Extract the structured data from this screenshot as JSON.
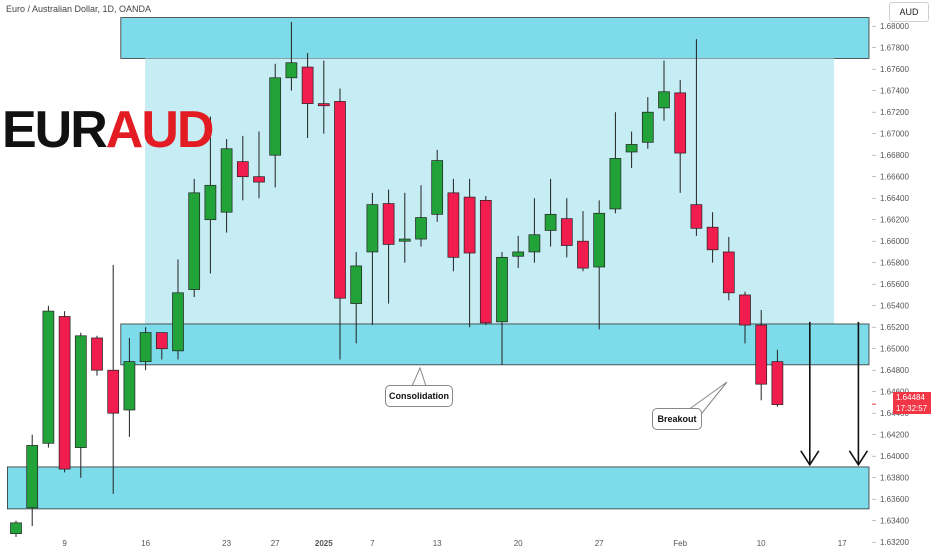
{
  "header": {
    "symbol_title": "Euro / Australian Dollar, 1D, OANDA",
    "currency_button": "AUD"
  },
  "branding": {
    "part1": "EUR",
    "part2": "AUD"
  },
  "annotations": {
    "consolidation": "Consolidation",
    "breakout": "Breakout"
  },
  "last_price": {
    "price": "1.64484",
    "countdown": "17:32:57"
  },
  "colors": {
    "up": "#22a339",
    "down": "#f01d4e",
    "zone": "#7edbe9",
    "range_fill": "#c6ecf4",
    "last_price": "#f23645",
    "brand_accent": "#e31b23"
  },
  "chart_data": {
    "type": "candlestick",
    "title": "Euro / Australian Dollar, 1D, OANDA",
    "ylim": [
      1.6322,
      1.6815
    ],
    "y_ticks": [
      "1.68000",
      "1.67800",
      "1.67600",
      "1.67400",
      "1.67200",
      "1.67000",
      "1.66800",
      "1.66600",
      "1.66400",
      "1.66200",
      "1.66000",
      "1.65800",
      "1.65600",
      "1.65400",
      "1.65200",
      "1.65000",
      "1.64800",
      "1.64600",
      "1.64400",
      "1.64200",
      "1.64000",
      "1.63800",
      "1.63600",
      "1.63400",
      "1.63200"
    ],
    "x_ticks": [
      {
        "label": "9",
        "index": 3
      },
      {
        "label": "16",
        "index": 8
      },
      {
        "label": "23",
        "index": 13
      },
      {
        "label": "27",
        "index": 16
      },
      {
        "label": "2025",
        "index": 19,
        "bold": true
      },
      {
        "label": "7",
        "index": 22
      },
      {
        "label": "13",
        "index": 26
      },
      {
        "label": "20",
        "index": 31
      },
      {
        "label": "27",
        "index": 36
      },
      {
        "label": "Feb",
        "index": 41
      },
      {
        "label": "10",
        "index": 46
      },
      {
        "label": "17",
        "index": 51
      }
    ],
    "candles": [
      {
        "o": 1.6328,
        "h": 1.634,
        "l": 1.6325,
        "c": 1.6338
      },
      {
        "o": 1.6352,
        "h": 1.642,
        "l": 1.6335,
        "c": 1.641
      },
      {
        "o": 1.6412,
        "h": 1.654,
        "l": 1.6408,
        "c": 1.6535
      },
      {
        "o": 1.653,
        "h": 1.6535,
        "l": 1.6385,
        "c": 1.6388
      },
      {
        "o": 1.6408,
        "h": 1.6515,
        "l": 1.638,
        "c": 1.6512
      },
      {
        "o": 1.651,
        "h": 1.6512,
        "l": 1.6475,
        "c": 1.648
      },
      {
        "o": 1.648,
        "h": 1.6578,
        "l": 1.6365,
        "c": 1.644
      },
      {
        "o": 1.6443,
        "h": 1.651,
        "l": 1.6418,
        "c": 1.6488
      },
      {
        "o": 1.6488,
        "h": 1.652,
        "l": 1.648,
        "c": 1.6515
      },
      {
        "o": 1.6515,
        "h": 1.6515,
        "l": 1.649,
        "c": 1.65
      },
      {
        "o": 1.6498,
        "h": 1.6583,
        "l": 1.649,
        "c": 1.6552
      },
      {
        "o": 1.6555,
        "h": 1.6658,
        "l": 1.6548,
        "c": 1.6645
      },
      {
        "o": 1.662,
        "h": 1.6716,
        "l": 1.657,
        "c": 1.6652
      },
      {
        "o": 1.6627,
        "h": 1.6695,
        "l": 1.6608,
        "c": 1.6686
      },
      {
        "o": 1.6674,
        "h": 1.6698,
        "l": 1.6638,
        "c": 1.666
      },
      {
        "o": 1.666,
        "h": 1.6702,
        "l": 1.664,
        "c": 1.6655
      },
      {
        "o": 1.668,
        "h": 1.6765,
        "l": 1.665,
        "c": 1.6752
      },
      {
        "o": 1.6752,
        "h": 1.6804,
        "l": 1.674,
        "c": 1.6766
      },
      {
        "o": 1.6762,
        "h": 1.6775,
        "l": 1.6696,
        "c": 1.6728
      },
      {
        "o": 1.6728,
        "h": 1.6768,
        "l": 1.67,
        "c": 1.6726
      },
      {
        "o": 1.673,
        "h": 1.6742,
        "l": 1.649,
        "c": 1.6547
      },
      {
        "o": 1.6542,
        "h": 1.659,
        "l": 1.6505,
        "c": 1.6577
      },
      {
        "o": 1.659,
        "h": 1.6645,
        "l": 1.6522,
        "c": 1.6634
      },
      {
        "o": 1.6635,
        "h": 1.6648,
        "l": 1.6542,
        "c": 1.6597
      },
      {
        "o": 1.66,
        "h": 1.6645,
        "l": 1.658,
        "c": 1.6602
      },
      {
        "o": 1.6602,
        "h": 1.6652,
        "l": 1.6595,
        "c": 1.6622
      },
      {
        "o": 1.6625,
        "h": 1.6685,
        "l": 1.6618,
        "c": 1.6675
      },
      {
        "o": 1.6645,
        "h": 1.6658,
        "l": 1.6572,
        "c": 1.6585
      },
      {
        "o": 1.6641,
        "h": 1.6658,
        "l": 1.652,
        "c": 1.6589
      },
      {
        "o": 1.6638,
        "h": 1.6642,
        "l": 1.6522,
        "c": 1.6524
      },
      {
        "o": 1.6525,
        "h": 1.659,
        "l": 1.6485,
        "c": 1.6585
      },
      {
        "o": 1.6586,
        "h": 1.6605,
        "l": 1.6575,
        "c": 1.659
      },
      {
        "o": 1.659,
        "h": 1.664,
        "l": 1.658,
        "c": 1.6606
      },
      {
        "o": 1.661,
        "h": 1.6658,
        "l": 1.6595,
        "c": 1.6625
      },
      {
        "o": 1.6621,
        "h": 1.664,
        "l": 1.6585,
        "c": 1.6596
      },
      {
        "o": 1.66,
        "h": 1.6628,
        "l": 1.6572,
        "c": 1.6575
      },
      {
        "o": 1.6576,
        "h": 1.6638,
        "l": 1.6518,
        "c": 1.6626
      },
      {
        "o": 1.663,
        "h": 1.672,
        "l": 1.6626,
        "c": 1.6677
      },
      {
        "o": 1.6683,
        "h": 1.6702,
        "l": 1.6668,
        "c": 1.669
      },
      {
        "o": 1.6692,
        "h": 1.6734,
        "l": 1.6686,
        "c": 1.672
      },
      {
        "o": 1.6724,
        "h": 1.6768,
        "l": 1.6712,
        "c": 1.6739
      },
      {
        "o": 1.6738,
        "h": 1.675,
        "l": 1.6645,
        "c": 1.6682
      },
      {
        "o": 1.6634,
        "h": 1.6788,
        "l": 1.6605,
        "c": 1.6612
      },
      {
        "o": 1.6613,
        "h": 1.6627,
        "l": 1.658,
        "c": 1.6592
      },
      {
        "o": 1.659,
        "h": 1.6604,
        "l": 1.6545,
        "c": 1.6552
      },
      {
        "o": 1.655,
        "h": 1.6553,
        "l": 1.6505,
        "c": 1.6522
      },
      {
        "o": 1.6522,
        "h": 1.6536,
        "l": 1.6452,
        "c": 1.6467
      },
      {
        "o": 1.6488,
        "h": 1.6499,
        "l": 1.6446,
        "c": 1.6448
      }
    ],
    "zones": [
      {
        "name": "upper-resistance-zone",
        "y_top": 1.6808,
        "y_bottom": 1.677,
        "x_from_index": 6.5,
        "x_to": "plot-right"
      },
      {
        "name": "range-fill",
        "y_top": 1.677,
        "y_bottom": 1.6523,
        "x_from_index": 8,
        "x_to_index": 50.5
      },
      {
        "name": "range-support-zone",
        "y_top": 1.6523,
        "y_bottom": 1.6485,
        "x_from_index": 6.5,
        "x_to": "plot-right"
      },
      {
        "name": "lower-target-zone",
        "y_top": 1.639,
        "y_bottom": 1.6351,
        "x_from_index": -0.5,
        "x_to": "plot-right"
      }
    ],
    "arrows": [
      {
        "name": "target-arrow-1",
        "x_index": 49,
        "y_from": 1.6525,
        "y_to": 1.6392
      },
      {
        "name": "target-arrow-2",
        "x_index": 52,
        "y_from": 1.6525,
        "y_to": 1.6392
      }
    ],
    "grid": false,
    "legend": "none"
  }
}
